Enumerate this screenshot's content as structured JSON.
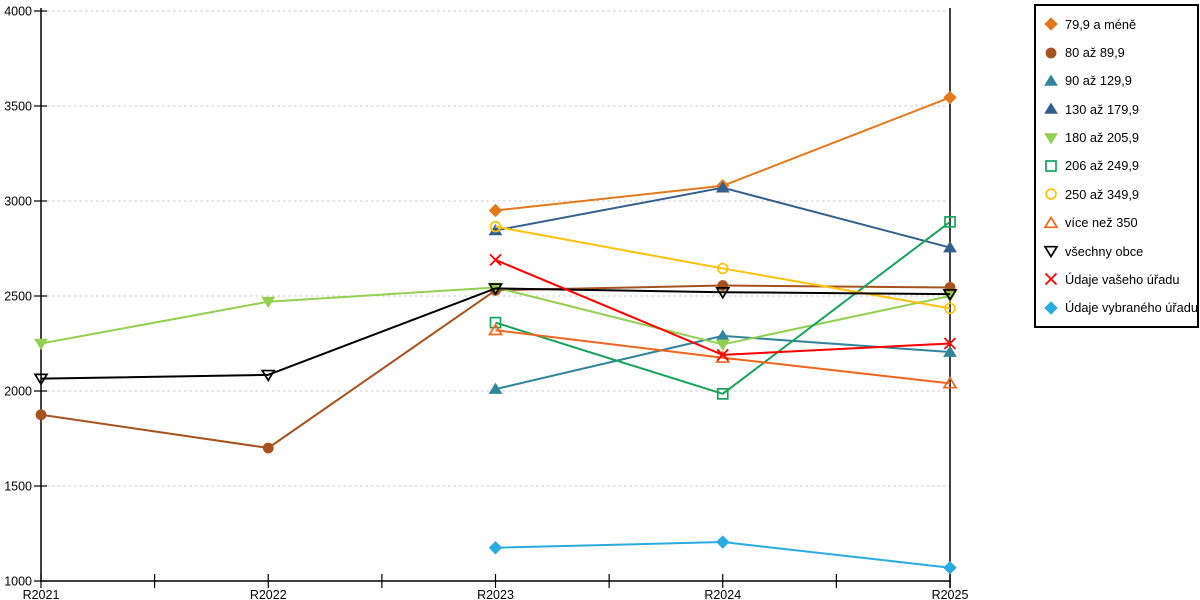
{
  "chart_data": {
    "type": "line",
    "title": "",
    "xlabel": "",
    "ylabel": "",
    "x_categories": [
      "R2021",
      "R2022",
      "R2023",
      "R2024",
      "R2025"
    ],
    "y_ticks": [
      1000,
      1500,
      2000,
      2500,
      3000,
      3500,
      4000
    ],
    "ylim": [
      1000,
      4000
    ],
    "grid": "horizontal-dashed",
    "grid_color": "#c8c8c8",
    "axis_color": "#000000",
    "legend_position": "right",
    "series": [
      {
        "label": "79,9 a méně",
        "color": "#E4791C",
        "marker": "diamond",
        "filled": true,
        "values": [
          null,
          null,
          2950,
          3080,
          3545
        ]
      },
      {
        "label": "80 až 89,9",
        "color": "#A5521E",
        "marker": "circle",
        "filled": true,
        "values": [
          1875,
          1700,
          2530,
          2555,
          2545
        ]
      },
      {
        "label": "90 až 129,9",
        "color": "#31849B",
        "marker": "triangle-up",
        "filled": true,
        "values": [
          null,
          null,
          2010,
          2290,
          2205
        ]
      },
      {
        "label": "130 až 179,9",
        "color": "#335F8E",
        "marker": "triangle-up",
        "filled": true,
        "values": [
          null,
          null,
          2845,
          3070,
          2755
        ]
      },
      {
        "label": "180 až 205,9",
        "color": "#92D050",
        "marker": "triangle-down",
        "filled": true,
        "values": [
          2250,
          2470,
          2545,
          2245,
          2500
        ]
      },
      {
        "label": "206 až 249,9",
        "color": "#18A25C",
        "marker": "square",
        "filled": false,
        "values": [
          null,
          null,
          2360,
          1985,
          2890
        ]
      },
      {
        "label": "250 až 349,9",
        "color": "#FFC208",
        "marker": "circle",
        "filled": false,
        "values": [
          null,
          null,
          2865,
          2645,
          2435
        ]
      },
      {
        "label": "více než 350",
        "color": "#F1641C",
        "marker": "triangle-up",
        "filled": false,
        "values": [
          null,
          null,
          2320,
          2175,
          2040
        ]
      },
      {
        "label": "všechny obce",
        "color": "#000000",
        "marker": "triangle-down",
        "filled": false,
        "values": [
          2065,
          2085,
          2540,
          2520,
          2510
        ]
      },
      {
        "label": "Údaje vašeho úřadu",
        "color": "#FF0000",
        "marker": "x",
        "filled": false,
        "values": [
          null,
          null,
          2690,
          2190,
          2250
        ]
      },
      {
        "label": "Údaje vybraného úřadu",
        "color": "#29ABE2",
        "marker": "diamond",
        "filled": true,
        "values": [
          null,
          null,
          1175,
          1205,
          1070
        ]
      }
    ]
  }
}
